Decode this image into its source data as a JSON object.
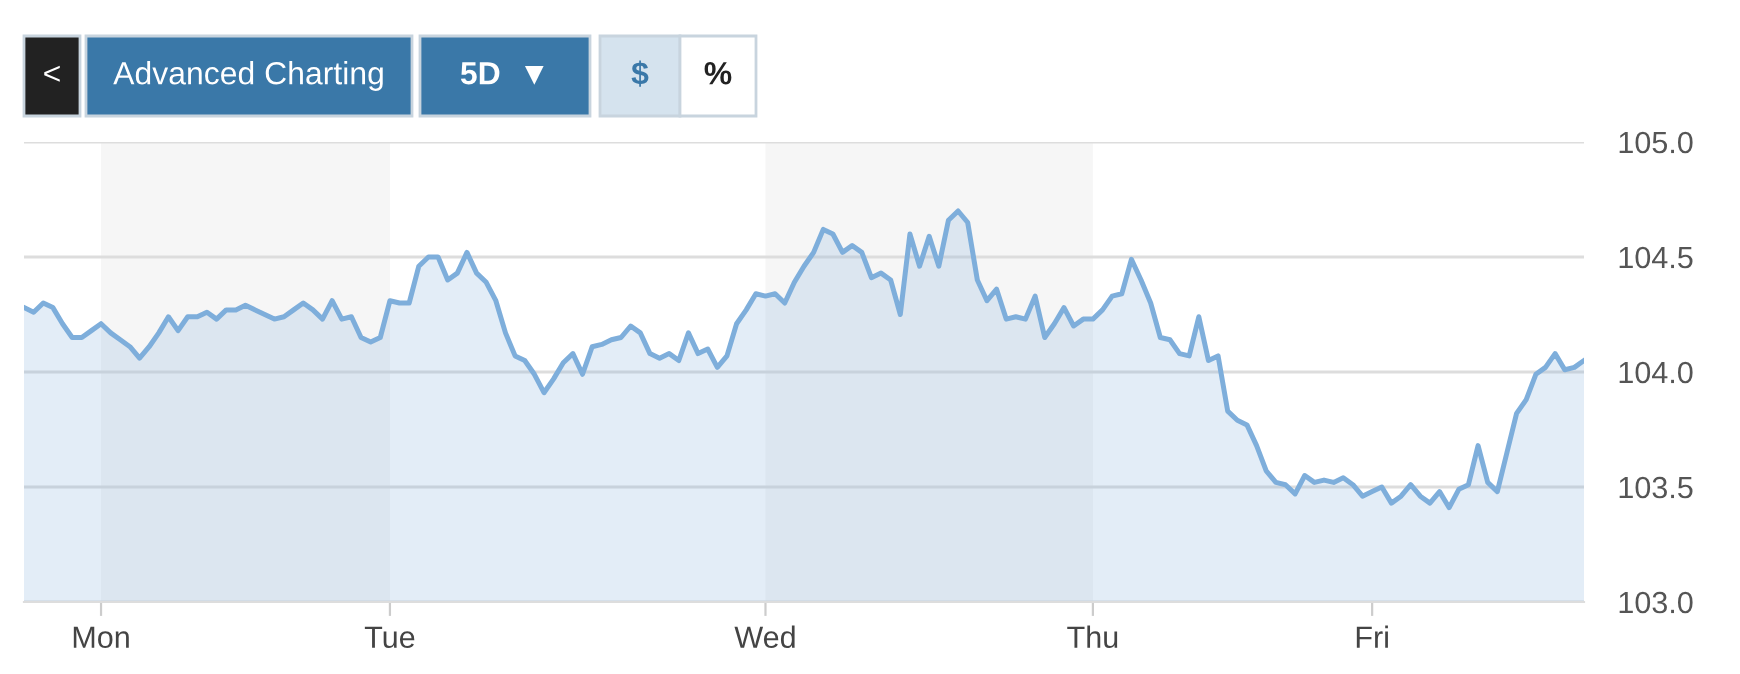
{
  "chart_data": {
    "type": "area",
    "categories": [
      null,
      null,
      null,
      null,
      null,
      null,
      null,
      null,
      "Mon",
      null,
      null,
      null,
      null,
      null,
      null,
      null,
      null,
      null,
      null,
      null,
      null,
      null,
      null,
      null,
      null,
      null,
      null,
      null,
      null,
      null,
      null,
      null,
      null,
      null,
      null,
      null,
      null,
      null,
      "Tue",
      null,
      null,
      null,
      null,
      null,
      null,
      null,
      null,
      null,
      null,
      null,
      null,
      null,
      null,
      null,
      null,
      null,
      null,
      null,
      null,
      null,
      null,
      null,
      null,
      null,
      null,
      null,
      null,
      null,
      null,
      null,
      null,
      null,
      null,
      null,
      null,
      null,
      null,
      "Wed",
      null,
      null,
      null,
      null,
      null,
      null,
      null,
      null,
      null,
      null,
      null,
      null,
      null,
      null,
      null,
      null,
      null,
      null,
      null,
      null,
      null,
      null,
      null,
      null,
      null,
      null,
      null,
      null,
      null,
      null,
      null,
      null,
      null,
      "Thu",
      null,
      null,
      null,
      null,
      null,
      null,
      null,
      null,
      null,
      null,
      null,
      null,
      null,
      null,
      null,
      null,
      null,
      null,
      null,
      null,
      null,
      null,
      null,
      null,
      null,
      null,
      null,
      null,
      "Fri",
      null,
      null,
      null,
      null,
      null,
      null,
      null,
      null,
      null,
      null,
      null,
      null,
      null,
      null,
      null,
      null,
      null,
      null,
      null,
      null,
      null,
      null
    ],
    "series": [
      {
        "color": "#7eaedb",
        "values": [
          104.28,
          104.26,
          104.3,
          104.28,
          104.21,
          104.15,
          104.15,
          104.18,
          104.21,
          104.17,
          104.14,
          104.11,
          104.06,
          104.11,
          104.17,
          104.24,
          104.18,
          104.24,
          104.24,
          104.26,
          104.23,
          104.27,
          104.27,
          104.29,
          104.27,
          104.25,
          104.23,
          104.24,
          104.27,
          104.3,
          104.27,
          104.23,
          104.31,
          104.23,
          104.24,
          104.15,
          104.13,
          104.15,
          104.31,
          104.3,
          104.3,
          104.46,
          104.5,
          104.5,
          104.4,
          104.43,
          104.52,
          104.43,
          104.39,
          104.31,
          104.17,
          104.07,
          104.05,
          103.99,
          103.91,
          103.97,
          104.04,
          104.08,
          103.99,
          104.11,
          104.12,
          104.14,
          104.15,
          104.2,
          104.17,
          104.08,
          104.06,
          104.08,
          104.05,
          104.17,
          104.08,
          104.1,
          104.02,
          104.07,
          104.21,
          104.27,
          104.34,
          104.33,
          104.34,
          104.3,
          104.39,
          104.46,
          104.52,
          104.62,
          104.6,
          104.52,
          104.55,
          104.52,
          104.41,
          104.43,
          104.4,
          104.25,
          104.6,
          104.46,
          104.59,
          104.46,
          104.66,
          104.7,
          104.65,
          104.4,
          104.31,
          104.36,
          104.23,
          104.24,
          104.23,
          104.33,
          104.15,
          104.21,
          104.28,
          104.2,
          104.23,
          104.23,
          104.27,
          104.33,
          104.34,
          104.49,
          104.4,
          104.3,
          104.15,
          104.14,
          104.08,
          104.07,
          104.24,
          104.05,
          104.07,
          103.83,
          103.79,
          103.77,
          103.68,
          103.57,
          103.52,
          103.51,
          103.47,
          103.55,
          103.52,
          103.53,
          103.52,
          103.54,
          103.51,
          103.46,
          103.48,
          103.5,
          103.43,
          103.46,
          103.51,
          103.46,
          103.43,
          103.48,
          103.41,
          103.49,
          103.51,
          103.68,
          103.52,
          103.48,
          103.65,
          103.82,
          103.88,
          103.99,
          104.02,
          104.08,
          104.01,
          104.02,
          104.05
        ]
      }
    ],
    "ylim": [
      103.0,
      105.0
    ],
    "yticks": [
      {
        "value": 103.0,
        "label": "103.0"
      },
      {
        "value": 103.5,
        "label": "103.5"
      },
      {
        "value": 104.0,
        "label": "104.0"
      },
      {
        "value": 104.5,
        "label": "104.5"
      },
      {
        "value": 105.0,
        "label": "105.0"
      }
    ],
    "grid": "y",
    "bands": [
      {
        "axis": "x",
        "from": "Mon",
        "to": "Tue",
        "color": "#f6f6f6"
      },
      {
        "axis": "x",
        "from": "Wed",
        "to": "Thu",
        "color": "#f6f6f6"
      }
    ],
    "annotations": [
      "<",
      "Advanced Charting",
      "5D  ▼",
      "$",
      "%"
    ]
  }
}
